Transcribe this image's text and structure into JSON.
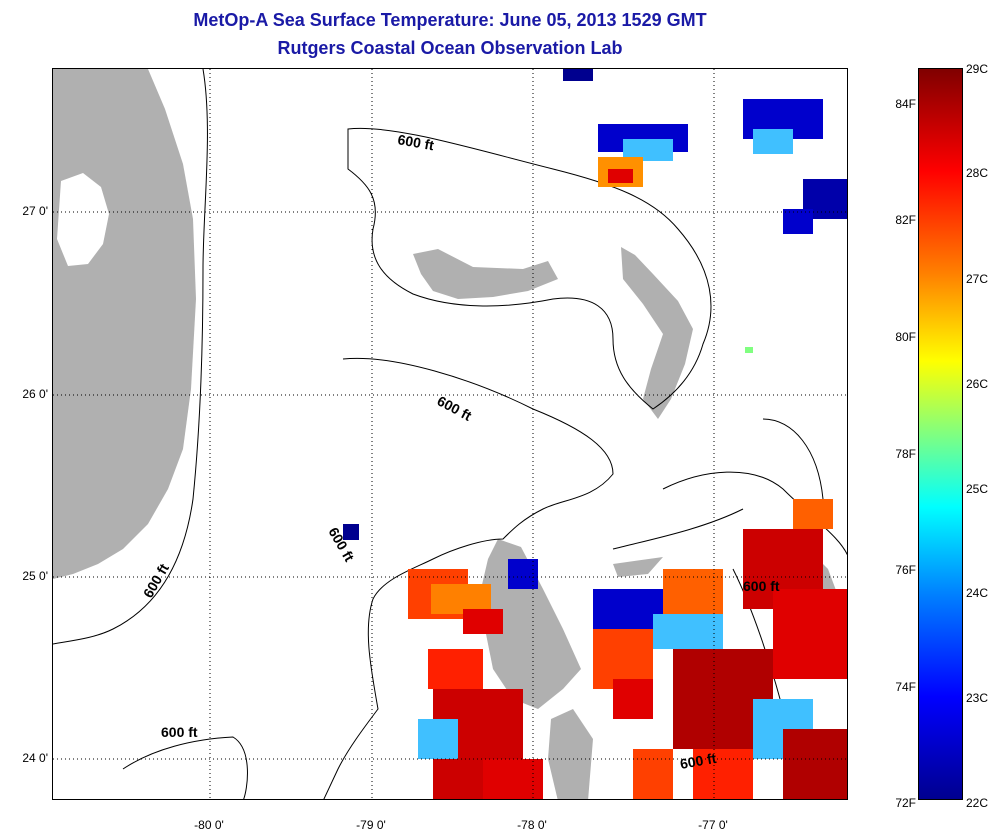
{
  "title": "MetOp-A Sea Surface Temperature:  June 05, 2013 1529 GMT",
  "subtitle": "Rutgers Coastal Ocean Observation Lab",
  "map": {
    "lat_labels": [
      "27 0'",
      "26 0'",
      "25 0'",
      "24 0'"
    ],
    "lon_labels": [
      "-80 0'",
      "-79 0'",
      "-78 0'",
      "-77 0'"
    ],
    "contour_label": "600 ft",
    "land_color": "#b0b0b0"
  },
  "colorbar": {
    "celsius": [
      "29C",
      "28C",
      "27C",
      "26C",
      "25C",
      "24C",
      "23C",
      "22C"
    ],
    "fahrenheit": [
      "84F",
      "82F",
      "80F",
      "78F",
      "76F",
      "74F",
      "72F"
    ]
  }
}
